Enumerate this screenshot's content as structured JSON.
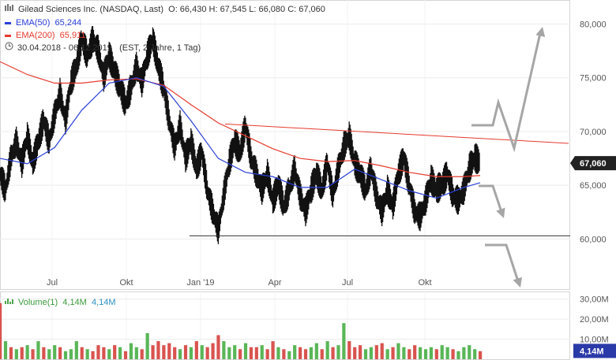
{
  "header": {
    "title": "Gilead Sciences Inc. (NASDAQ, Last)",
    "ohlc": "O: 66,430  H: 67,545  L: 66,080  C: 67,060",
    "ema50_label": "EMA(50)",
    "ema50_value": "65,244",
    "ema200_label": "EMA(200)",
    "ema200_value": "65,911",
    "range": "30.04.2018 - 06.12.2019",
    "range_info": "(EST, 2 Jahre, 1 Tag)"
  },
  "volume_legend": {
    "label": "Volume(1)",
    "value1": "4,14M",
    "value2": "4,14M"
  },
  "colors": {
    "ema50": "#2a3fd8",
    "ema200": "#e53a2e",
    "up_bar": "#59b657",
    "down_bar": "#d9534f",
    "arrow": "#a6a6a6",
    "price": "#111111",
    "last_tag": "#222222"
  },
  "chart_data": {
    "type": "line",
    "x_ticks": [
      "Jul",
      "Okt",
      "Jan '19",
      "Apr",
      "Jul",
      "Okt"
    ],
    "y_ticks": [
      "80,000",
      "75,000",
      "70,000",
      "65,000",
      "60,000"
    ],
    "ylim": [
      56.0,
      81.5
    ],
    "last_price": "67,060",
    "support_level": 60.3,
    "resistance_line": {
      "from": [
        "Jan '19",
        70.7
      ],
      "to": [
        "end",
        68.9
      ]
    },
    "volume_ticks": [
      "30,00M",
      "20,00M",
      "10,00M"
    ],
    "volume_last": "4,14M",
    "volume_ylim": [
      0,
      33
    ],
    "price_path": [
      [
        0,
        66.0
      ],
      [
        1,
        64.5
      ],
      [
        2,
        67.5
      ],
      [
        3,
        69.0
      ],
      [
        4,
        67.0
      ],
      [
        5,
        69.5
      ],
      [
        6,
        67.0
      ],
      [
        7,
        69.0
      ],
      [
        8,
        71.0
      ],
      [
        9,
        69.0
      ],
      [
        10,
        71.5
      ],
      [
        11,
        73.5
      ],
      [
        12,
        71.0
      ],
      [
        13,
        74.5
      ],
      [
        14,
        76.0
      ],
      [
        15,
        78.5
      ],
      [
        16,
        77.0
      ],
      [
        17,
        78.5
      ],
      [
        18,
        77.5
      ],
      [
        19,
        75.0
      ],
      [
        20,
        77.0
      ],
      [
        21,
        75.5
      ],
      [
        22,
        74.0
      ],
      [
        23,
        72.5
      ],
      [
        24,
        74.0
      ],
      [
        25,
        76.0
      ],
      [
        26,
        74.5
      ],
      [
        27,
        77.0
      ],
      [
        28,
        78.5
      ],
      [
        29,
        76.0
      ],
      [
        30,
        74.0
      ],
      [
        31,
        71.0
      ],
      [
        32,
        68.5
      ],
      [
        33,
        70.5
      ],
      [
        34,
        67.5
      ],
      [
        35,
        69.0
      ],
      [
        36,
        66.5
      ],
      [
        37,
        68.0
      ],
      [
        38,
        64.5
      ],
      [
        39,
        62.5
      ],
      [
        40,
        60.8
      ],
      [
        41,
        64.0
      ],
      [
        42,
        67.0
      ],
      [
        43,
        69.0
      ],
      [
        44,
        68.0
      ],
      [
        45,
        70.5
      ],
      [
        46,
        67.5
      ],
      [
        47,
        66.0
      ],
      [
        48,
        64.5
      ],
      [
        49,
        66.0
      ],
      [
        50,
        63.5
      ],
      [
        51,
        65.0
      ],
      [
        52,
        63.0
      ],
      [
        53,
        64.5
      ],
      [
        54,
        66.5
      ],
      [
        55,
        64.0
      ],
      [
        56,
        62.5
      ],
      [
        57,
        64.5
      ],
      [
        58,
        66.0
      ],
      [
        59,
        64.5
      ],
      [
        60,
        67.0
      ],
      [
        61,
        64.0
      ],
      [
        62,
        66.5
      ],
      [
        63,
        68.5
      ],
      [
        64,
        69.5
      ],
      [
        65,
        67.0
      ],
      [
        66,
        66.0
      ],
      [
        67,
        64.5
      ],
      [
        68,
        66.5
      ],
      [
        69,
        64.0
      ],
      [
        70,
        62.5
      ],
      [
        71,
        64.5
      ],
      [
        72,
        63.0
      ],
      [
        73,
        66.0
      ],
      [
        74,
        67.5
      ],
      [
        75,
        65.0
      ],
      [
        76,
        62.5
      ],
      [
        77,
        62.0
      ],
      [
        78,
        63.5
      ],
      [
        79,
        65.5
      ],
      [
        80,
        64.5
      ],
      [
        81,
        65.0
      ],
      [
        82,
        66.0
      ],
      [
        83,
        64.0
      ],
      [
        84,
        63.5
      ],
      [
        85,
        64.5
      ],
      [
        86,
        66.5
      ],
      [
        87,
        67.5
      ],
      [
        88,
        67.1
      ]
    ],
    "ema50_path": [
      [
        0,
        67.5
      ],
      [
        5,
        67.0
      ],
      [
        10,
        68.5
      ],
      [
        15,
        72.0
      ],
      [
        20,
        74.5
      ],
      [
        25,
        75.0
      ],
      [
        30,
        74.2
      ],
      [
        35,
        71.0
      ],
      [
        40,
        67.5
      ],
      [
        45,
        66.2
      ],
      [
        50,
        65.8
      ],
      [
        55,
        64.8
      ],
      [
        60,
        64.8
      ],
      [
        65,
        66.5
      ],
      [
        70,
        65.5
      ],
      [
        75,
        64.5
      ],
      [
        80,
        63.8
      ],
      [
        85,
        64.8
      ],
      [
        88,
        65.24
      ]
    ],
    "ema200_path": [
      [
        0,
        76.5
      ],
      [
        5,
        75.3
      ],
      [
        10,
        74.5
      ],
      [
        15,
        74.5
      ],
      [
        20,
        74.8
      ],
      [
        25,
        74.9
      ],
      [
        30,
        74.3
      ],
      [
        35,
        72.5
      ],
      [
        40,
        70.8
      ],
      [
        45,
        69.6
      ],
      [
        50,
        68.4
      ],
      [
        55,
        67.5
      ],
      [
        60,
        67.2
      ],
      [
        65,
        67.3
      ],
      [
        70,
        66.8
      ],
      [
        75,
        66.2
      ],
      [
        80,
        65.8
      ],
      [
        85,
        65.8
      ],
      [
        88,
        65.91
      ]
    ],
    "volume": [
      [
        0,
        28,
        0
      ],
      [
        1,
        9,
        1
      ],
      [
        2,
        6,
        0
      ],
      [
        3,
        5,
        1
      ],
      [
        4,
        6,
        0
      ],
      [
        5,
        7,
        1
      ],
      [
        6,
        5,
        0
      ],
      [
        7,
        9,
        1
      ],
      [
        8,
        6,
        0
      ],
      [
        9,
        5,
        1
      ],
      [
        10,
        7,
        1
      ],
      [
        11,
        6,
        0
      ],
      [
        12,
        4,
        1
      ],
      [
        13,
        5,
        1
      ],
      [
        14,
        9,
        1
      ],
      [
        15,
        6,
        0
      ],
      [
        16,
        5,
        1
      ],
      [
        17,
        4,
        0
      ],
      [
        18,
        7,
        0
      ],
      [
        19,
        6,
        0
      ],
      [
        20,
        5,
        1
      ],
      [
        21,
        7,
        0
      ],
      [
        22,
        6,
        1
      ],
      [
        23,
        4,
        0
      ],
      [
        24,
        8,
        1
      ],
      [
        25,
        6,
        1
      ],
      [
        26,
        5,
        0
      ],
      [
        27,
        13,
        1
      ],
      [
        28,
        7,
        0
      ],
      [
        29,
        9,
        0
      ],
      [
        30,
        7,
        0
      ],
      [
        31,
        8,
        0
      ],
      [
        32,
        6,
        0
      ],
      [
        33,
        5,
        1
      ],
      [
        34,
        7,
        0
      ],
      [
        35,
        6,
        1
      ],
      [
        36,
        9,
        0
      ],
      [
        37,
        7,
        1
      ],
      [
        38,
        6,
        0
      ],
      [
        39,
        8,
        0
      ],
      [
        40,
        12,
        0
      ],
      [
        41,
        9,
        1
      ],
      [
        42,
        6,
        1
      ],
      [
        43,
        7,
        1
      ],
      [
        44,
        5,
        0
      ],
      [
        45,
        8,
        1
      ],
      [
        46,
        6,
        0
      ],
      [
        47,
        6,
        0
      ],
      [
        48,
        7,
        1
      ],
      [
        49,
        5,
        0
      ],
      [
        50,
        9,
        0
      ],
      [
        51,
        6,
        1
      ],
      [
        52,
        5,
        0
      ],
      [
        53,
        4,
        1
      ],
      [
        54,
        7,
        1
      ],
      [
        55,
        6,
        0
      ],
      [
        56,
        5,
        0
      ],
      [
        57,
        6,
        1
      ],
      [
        58,
        8,
        1
      ],
      [
        59,
        5,
        0
      ],
      [
        60,
        9,
        1
      ],
      [
        61,
        6,
        0
      ],
      [
        62,
        7,
        1
      ],
      [
        63,
        18,
        1
      ],
      [
        64,
        9,
        0
      ],
      [
        65,
        6,
        0
      ],
      [
        66,
        7,
        0
      ],
      [
        67,
        5,
        1
      ],
      [
        68,
        6,
        1
      ],
      [
        69,
        7,
        0
      ],
      [
        70,
        8,
        0
      ],
      [
        71,
        5,
        1
      ],
      [
        72,
        6,
        0
      ],
      [
        73,
        8,
        1
      ],
      [
        74,
        6,
        1
      ],
      [
        75,
        5,
        0
      ],
      [
        76,
        7,
        0
      ],
      [
        77,
        6,
        1
      ],
      [
        78,
        5,
        1
      ],
      [
        79,
        6,
        1
      ],
      [
        80,
        5,
        0
      ],
      [
        81,
        7,
        1
      ],
      [
        82,
        6,
        1
      ],
      [
        83,
        5,
        0
      ],
      [
        84,
        4,
        1
      ],
      [
        85,
        6,
        1
      ],
      [
        86,
        7,
        1
      ],
      [
        87,
        5,
        1
      ],
      [
        88,
        4,
        0
      ]
    ]
  }
}
